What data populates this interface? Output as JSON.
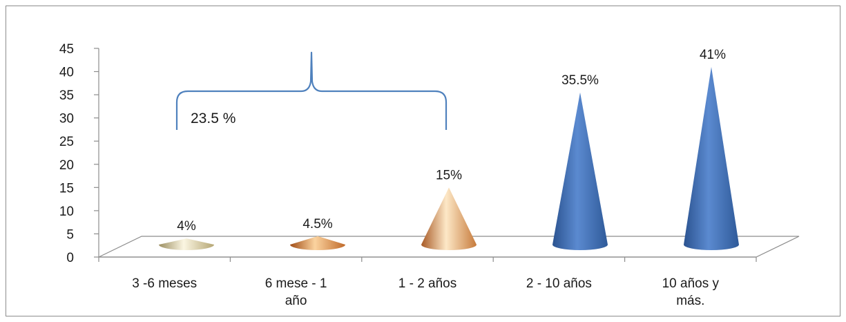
{
  "chart_data": {
    "type": "bar",
    "title": "",
    "xlabel": "",
    "ylabel": "",
    "ylim": [
      0,
      45
    ],
    "yticks": [
      0,
      5,
      10,
      15,
      20,
      25,
      30,
      35,
      40,
      45
    ],
    "grid": false,
    "legend": "none",
    "categories": [
      "3 -6 meses",
      "6 mese - 1 año",
      "1 - 2 años",
      "2 - 10 años",
      "10 años y más."
    ],
    "category_lines": [
      [
        "3 -6 meses"
      ],
      [
        "6 mese - 1",
        "año"
      ],
      [
        "1 - 2 años"
      ],
      [
        "2 - 10 años"
      ],
      [
        "10 años y",
        "más."
      ]
    ],
    "values": [
      4,
      4.5,
      15,
      35.5,
      41
    ],
    "data_labels": [
      "4%",
      "4.5%",
      "15%",
      "35.5%",
      "41%"
    ],
    "mark_shape": "cone",
    "colors": [
      "#e6dcb5",
      "#e39a55",
      "#eab07a",
      "#4a78b9",
      "#4a78b9"
    ],
    "annotation": {
      "text": "23.5 %",
      "brace_over_categories": [
        "3 -6 meses",
        "6 mese - 1 año",
        "1 - 2 años"
      ],
      "color": "#4f81bd"
    }
  }
}
